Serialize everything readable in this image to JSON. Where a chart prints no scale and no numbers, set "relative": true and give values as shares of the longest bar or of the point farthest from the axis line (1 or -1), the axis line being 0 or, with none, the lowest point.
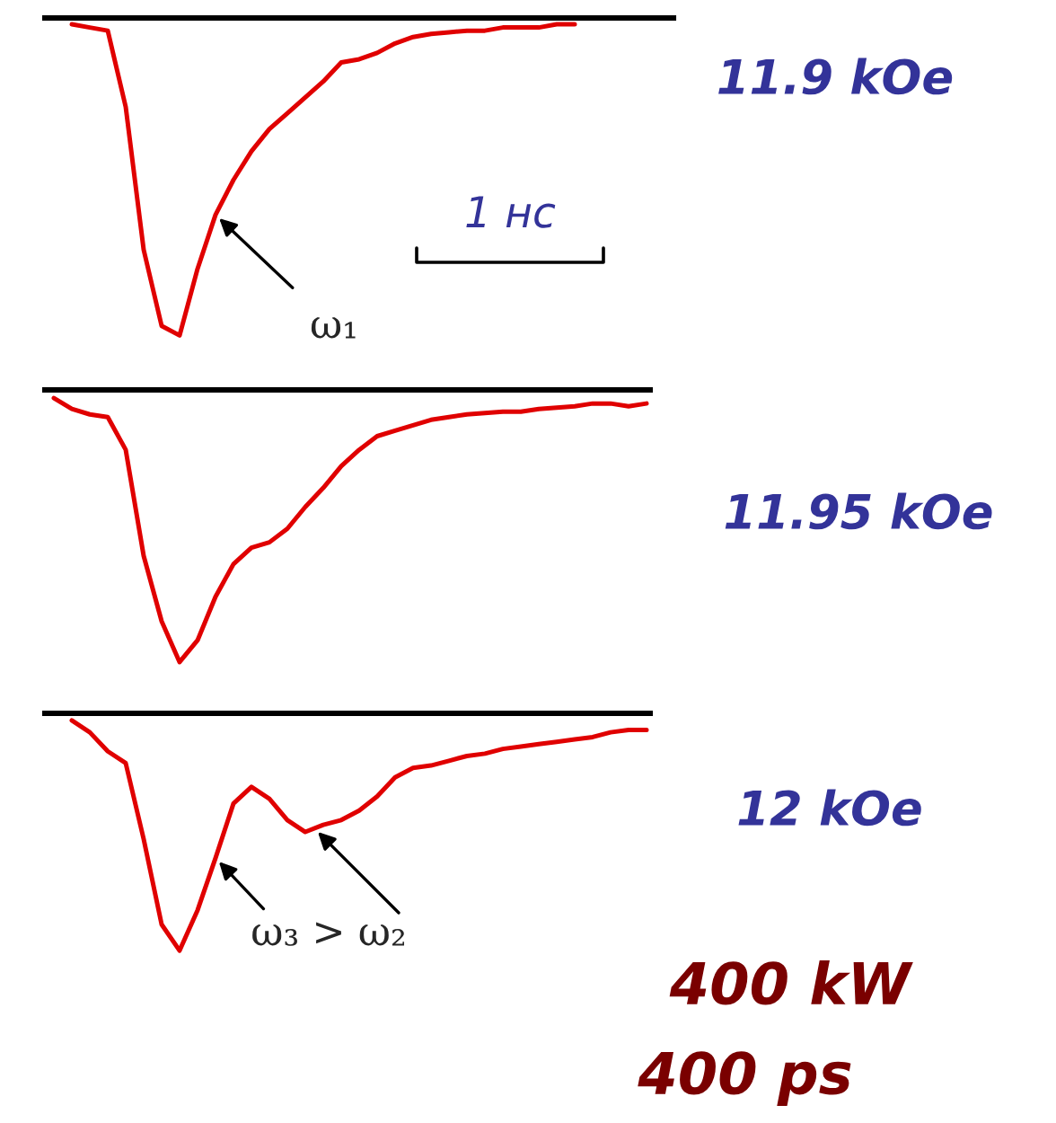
{
  "chart_data": [
    {
      "type": "line",
      "relative": true,
      "categories": [
        null,
        null,
        null,
        null,
        null,
        null,
        null,
        null,
        null,
        null,
        null,
        null,
        null,
        null,
        null,
        null,
        null,
        null,
        null,
        null,
        null,
        null,
        null,
        null,
        null,
        null,
        null,
        null,
        null,
        null,
        null,
        null,
        null,
        null
      ],
      "series": [
        {
          "color": "#e00000",
          "values": [
            null,
            -0.02,
            -0.03,
            -0.04,
            -0.28,
            -0.73,
            -0.97,
            -1,
            -0.79,
            -0.62,
            -0.51,
            -0.42,
            -0.35,
            -0.3,
            -0.25,
            -0.2,
            -0.14,
            -0.13,
            -0.11,
            -0.08,
            -0.06,
            -0.05,
            -0.045,
            -0.04,
            -0.04,
            -0.03,
            -0.03,
            -0.03,
            -0.02,
            -0.02,
            null,
            null,
            null,
            null
          ]
        }
      ],
      "annotations": [
        "11.9 kOe",
        "1 нс",
        "ω₁"
      ]
    },
    {
      "type": "line",
      "relative": true,
      "categories": [
        null,
        null,
        null,
        null,
        null,
        null,
        null,
        null,
        null,
        null,
        null,
        null,
        null,
        null,
        null,
        null,
        null,
        null,
        null,
        null,
        null,
        null,
        null,
        null,
        null,
        null,
        null,
        null,
        null,
        null,
        null,
        null,
        null,
        null
      ],
      "annotations": [
        "11.95 kOe"
      ],
      "series": [
        {
          "color": "#e00000",
          "values": [
            -0.03,
            -0.07,
            -0.09,
            -0.1,
            -0.22,
            -0.61,
            -0.85,
            -1,
            -0.92,
            -0.76,
            -0.64,
            -0.58,
            -0.56,
            -0.51,
            -0.43,
            -0.36,
            -0.28,
            -0.22,
            -0.17,
            -0.15,
            -0.13,
            -0.11,
            -0.1,
            -0.09,
            -0.085,
            -0.08,
            -0.08,
            -0.07,
            -0.065,
            -0.06,
            -0.05,
            -0.05,
            -0.06,
            -0.05
          ]
        }
      ]
    },
    {
      "type": "line",
      "relative": true,
      "categories": [
        null,
        null,
        null,
        null,
        null,
        null,
        null,
        null,
        null,
        null,
        null,
        null,
        null,
        null,
        null,
        null,
        null,
        null,
        null,
        null,
        null,
        null,
        null,
        null,
        null,
        null,
        null,
        null,
        null,
        null,
        null,
        null,
        null,
        null
      ],
      "series": [
        {
          "color": "#e00000",
          "values": [
            null,
            -0.03,
            -0.08,
            -0.16,
            -0.21,
            -0.53,
            -0.89,
            -1,
            -0.83,
            -0.61,
            -0.38,
            -0.31,
            -0.36,
            -0.45,
            -0.5,
            -0.47,
            -0.45,
            -0.41,
            -0.35,
            -0.27,
            -0.23,
            -0.22,
            -0.2,
            -0.18,
            -0.17,
            -0.15,
            -0.14,
            -0.13,
            -0.12,
            -0.11,
            -0.1,
            -0.08,
            -0.07,
            -0.07
          ]
        }
      ],
      "annotations": [
        "12 kOe",
        "ω₃ > ω₂",
        "400 kW",
        "400 ps"
      ]
    }
  ]
}
